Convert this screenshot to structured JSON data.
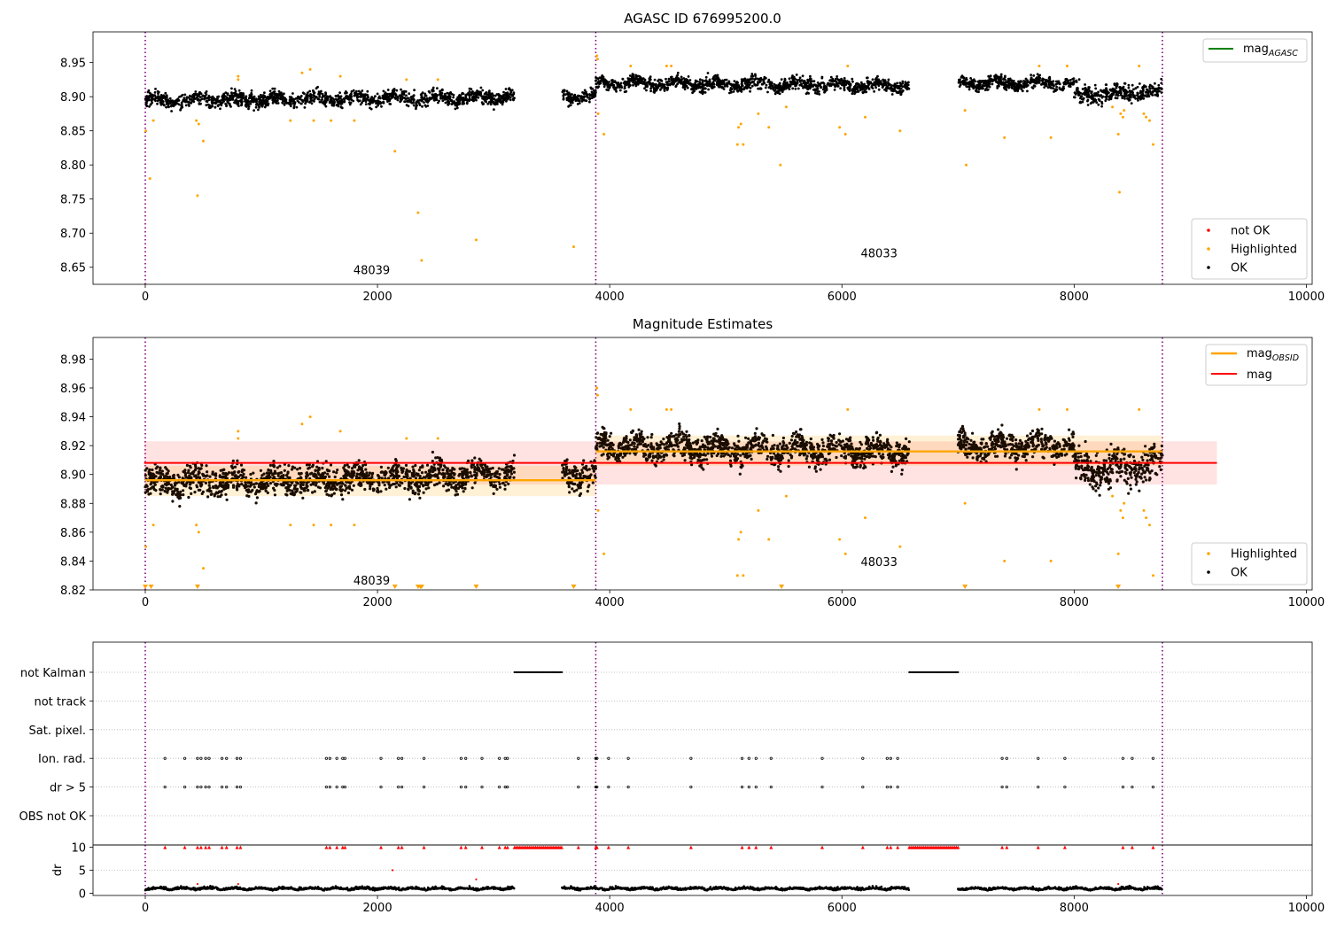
{
  "chart_data": [
    {
      "type": "scatter",
      "title": "AGASC ID 676995200.0",
      "xlim": [
        -450,
        10050
      ],
      "ylim": [
        8.625,
        8.995
      ],
      "xticks": [
        0,
        2000,
        4000,
        6000,
        8000,
        10000
      ],
      "yticks": [
        8.65,
        8.7,
        8.75,
        8.8,
        8.85,
        8.9,
        8.95
      ],
      "obs_boundaries": [
        0,
        3880,
        8760
      ],
      "obsid_labels": [
        {
          "text": "48039",
          "x": 1950,
          "y": 8.645
        },
        {
          "text": "48033",
          "x": 6320,
          "y": 8.67
        }
      ],
      "legend_upper": [
        {
          "name": "mag_AGASC",
          "label": "mag",
          "sub": "AGASC",
          "color": "#008000"
        }
      ],
      "legend_lower": [
        {
          "name": "not OK",
          "color": "#ff0000"
        },
        {
          "name": "Highlighted",
          "color": "#ffa500"
        },
        {
          "name": "OK",
          "color": "#000000"
        }
      ],
      "segments": [
        {
          "x0": 0,
          "x1": 3180,
          "mean": 8.897,
          "spread": 0.013,
          "trend": 0.006
        },
        {
          "x0": 3590,
          "x1": 3880,
          "mean": 8.9,
          "spread": 0.012,
          "trend": 0
        },
        {
          "x0": 3880,
          "x1": 6580,
          "mean": 8.918,
          "spread": 0.012,
          "trend": -0.004
        },
        {
          "x0": 7000,
          "x1": 8000,
          "mean": 8.92,
          "spread": 0.011,
          "trend": 0
        },
        {
          "x0": 8000,
          "x1": 8760,
          "mean": 8.905,
          "spread": 0.016,
          "trend": 0.004
        }
      ],
      "highlighted": [
        [
          5,
          8.85
        ],
        [
          40,
          8.78
        ],
        [
          70,
          8.865
        ],
        [
          440,
          8.865
        ],
        [
          450,
          8.755
        ],
        [
          460,
          8.86
        ],
        [
          500,
          8.835
        ],
        [
          800,
          8.93
        ],
        [
          800,
          8.925
        ],
        [
          1250,
          8.865
        ],
        [
          1350,
          8.935
        ],
        [
          1420,
          8.94
        ],
        [
          1450,
          8.865
        ],
        [
          1600,
          8.865
        ],
        [
          1680,
          8.93
        ],
        [
          1800,
          8.865
        ],
        [
          2150,
          8.82
        ],
        [
          2250,
          8.925
        ],
        [
          2350,
          8.73
        ],
        [
          2380,
          8.66
        ],
        [
          2520,
          8.925
        ],
        [
          2850,
          8.69
        ],
        [
          3690,
          8.68
        ],
        [
          3890,
          8.96
        ],
        [
          3895,
          8.955
        ],
        [
          3900,
          8.875
        ],
        [
          3950,
          8.845
        ],
        [
          4180,
          8.945
        ],
        [
          4490,
          8.945
        ],
        [
          4530,
          8.945
        ],
        [
          5100,
          8.83
        ],
        [
          5110,
          8.855
        ],
        [
          5130,
          8.86
        ],
        [
          5150,
          8.83
        ],
        [
          5280,
          8.875
        ],
        [
          5370,
          8.855
        ],
        [
          5470,
          8.8
        ],
        [
          5520,
          8.885
        ],
        [
          5980,
          8.855
        ],
        [
          6030,
          8.845
        ],
        [
          6050,
          8.945
        ],
        [
          6200,
          8.87
        ],
        [
          6500,
          8.85
        ],
        [
          7060,
          8.88
        ],
        [
          7070,
          8.8
        ],
        [
          7400,
          8.84
        ],
        [
          7700,
          8.945
        ],
        [
          7800,
          8.84
        ],
        [
          7940,
          8.945
        ],
        [
          8330,
          8.885
        ],
        [
          8380,
          8.845
        ],
        [
          8390,
          8.76
        ],
        [
          8400,
          8.875
        ],
        [
          8420,
          8.87
        ],
        [
          8430,
          8.88
        ],
        [
          8560,
          8.945
        ],
        [
          8600,
          8.875
        ],
        [
          8620,
          8.87
        ],
        [
          8650,
          8.865
        ],
        [
          8680,
          8.83
        ]
      ]
    },
    {
      "type": "scatter",
      "title": "Magnitude Estimates",
      "xlim": [
        -450,
        10050
      ],
      "ylim": [
        8.82,
        8.995
      ],
      "xticks": [
        0,
        2000,
        4000,
        6000,
        8000,
        10000
      ],
      "yticks": [
        8.82,
        8.84,
        8.86,
        8.88,
        8.9,
        8.92,
        8.94,
        8.96,
        8.98
      ],
      "obs_boundaries": [
        0,
        3880,
        8760
      ],
      "obsid_labels": [
        {
          "text": "48039",
          "x": 1950,
          "y": 8.826
        },
        {
          "text": "48033",
          "x": 6320,
          "y": 8.839
        }
      ],
      "mag": {
        "value": 8.908,
        "band": [
          8.893,
          8.923
        ],
        "x0": -10,
        "x1": 9230,
        "color": "#ff0000"
      },
      "mag_obsid": [
        {
          "x0": 0,
          "x1": 3880,
          "value": 8.896,
          "band": [
            8.885,
            8.906
          ]
        },
        {
          "x0": 3880,
          "x1": 8760,
          "value": 8.916,
          "band": [
            8.906,
            8.927
          ]
        }
      ],
      "legend_upper": [
        {
          "name": "mag_OBSID",
          "label": "mag",
          "sub": "OBSID",
          "color": "#ffa500"
        },
        {
          "name": "mag",
          "color": "#ff0000"
        }
      ],
      "legend_lower": [
        {
          "name": "Highlighted",
          "color": "#ffa500"
        },
        {
          "name": "OK",
          "color": "#000000"
        }
      ],
      "clipped_low_x": [
        0,
        50,
        450,
        2150,
        2350,
        2370,
        2380,
        2850,
        3690,
        5480,
        7060,
        8380
      ]
    },
    {
      "type": "scatter",
      "title": "",
      "xlim": [
        -450,
        10050
      ],
      "categories": [
        "not Kalman",
        "not track",
        "Sat. pixel.",
        "Ion. rad.",
        "dr > 5",
        "OBS not OK"
      ],
      "not_kalman_ranges": [
        [
          3180,
          3590
        ],
        [
          6580,
          7000
        ]
      ],
      "flag_x": [
        170,
        340,
        450,
        480,
        520,
        550,
        660,
        700,
        790,
        820,
        1560,
        1590,
        1650,
        1700,
        1720,
        2030,
        2180,
        2210,
        2400,
        2720,
        2760,
        2900,
        3050,
        3100,
        3120,
        3730,
        3880,
        3890,
        3990,
        4160,
        4700,
        5140,
        5200,
        5260,
        5390,
        5830,
        6180,
        6390,
        6420,
        6480,
        7380,
        7420,
        7690,
        7920,
        8420,
        8500,
        8680
      ]
    },
    {
      "type": "scatter",
      "title": "",
      "xlim": [
        -450,
        10050
      ],
      "ylim": [
        -0.5,
        10.5
      ],
      "ylabel": "dr",
      "yticks": [
        0,
        5,
        10
      ],
      "xticks": [
        0,
        2000,
        4000,
        6000,
        8000,
        10000
      ],
      "dr_outliers": [
        [
          2130,
          5
        ],
        [
          2850,
          3
        ],
        [
          450,
          2
        ],
        [
          800,
          2
        ],
        [
          8380,
          2
        ]
      ]
    }
  ]
}
